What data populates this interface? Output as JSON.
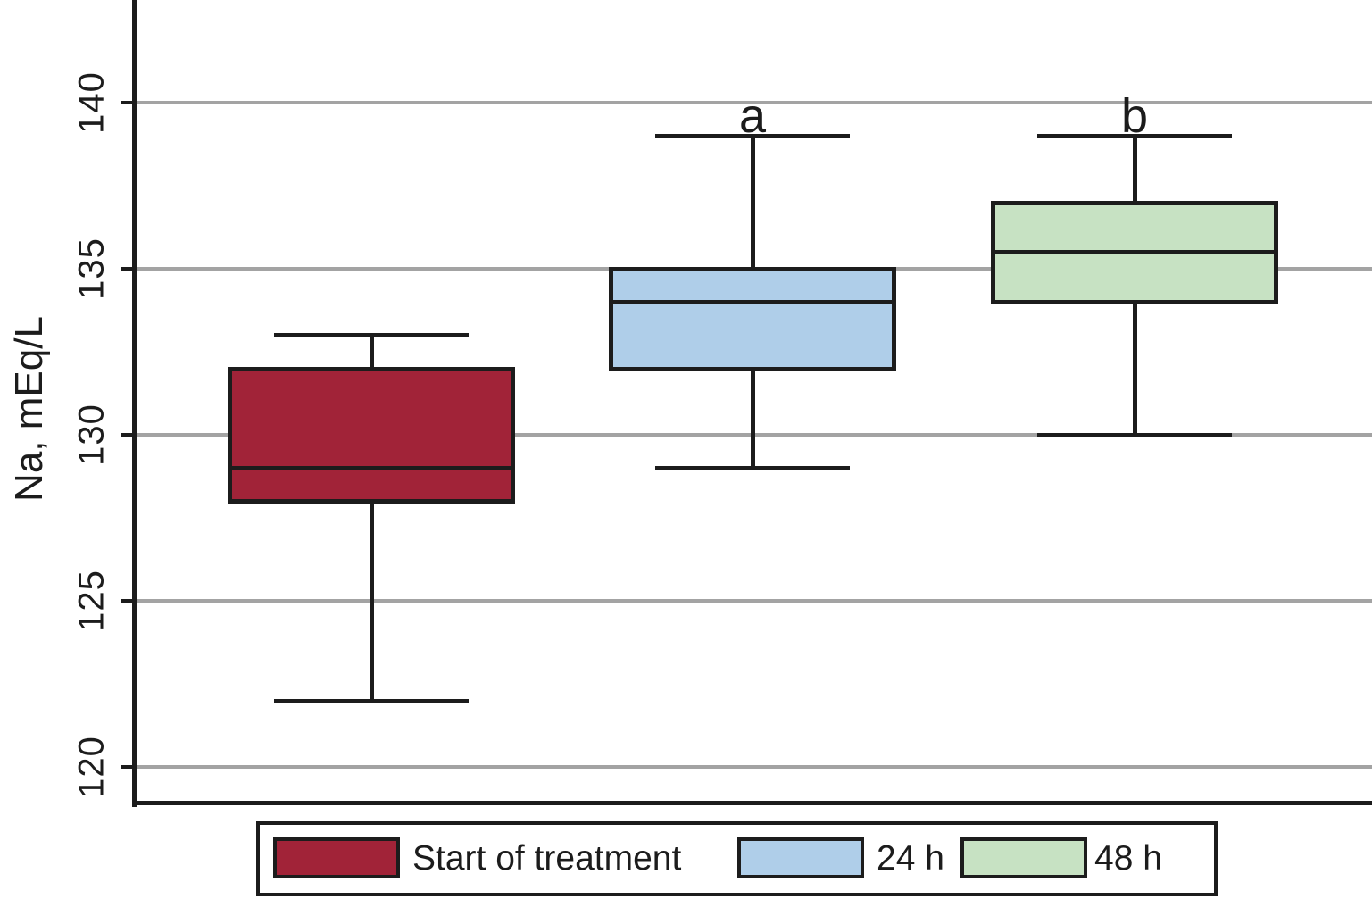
{
  "chart_data": {
    "type": "box",
    "title": "",
    "xlabel": "",
    "ylabel": "Na, mEq/L",
    "y_ticks": [
      120,
      125,
      130,
      135,
      140
    ],
    "ylim": [
      118.9,
      143.1
    ],
    "grid": "horizontal",
    "legend_position": "bottom",
    "colors": {
      "box_outline": "#1c1c1c",
      "gridline": "#a3a3a3",
      "red_fill": "#a12338",
      "blue_fill": "#afcee9",
      "green_fill": "#c7e2c3"
    },
    "series": [
      {
        "name": "Start of treatment",
        "fill": "#a12338",
        "min": 122,
        "q1": 128,
        "median": 129,
        "q3": 132,
        "max": 133,
        "annotation": ""
      },
      {
        "name": "24 h",
        "fill": "#afcee9",
        "min": 129,
        "q1": 132,
        "median": 134,
        "q3": 135,
        "max": 139,
        "annotation": "a"
      },
      {
        "name": "48 h",
        "fill": "#c7e2c3",
        "min": 130,
        "q1": 134,
        "median": 135.5,
        "q3": 137,
        "max": 139,
        "annotation": "b"
      }
    ]
  }
}
